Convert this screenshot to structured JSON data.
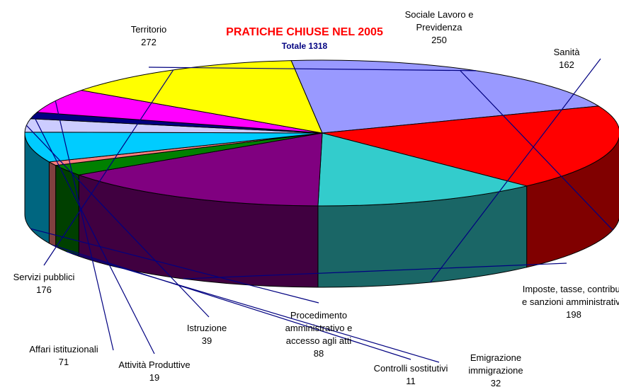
{
  "chart_data": {
    "type": "pie3d",
    "title": "PRATICHE CHIUSE NEL 2005",
    "subtitle": "Totale 1318",
    "categories": [
      "Territorio",
      "Sociale Lavoro e Previdenza",
      "Sanità",
      "Imposte, tasse, contributi e sanzioni amministrative",
      "Emigrazione immigrazione",
      "Controlli sostitutivi",
      "Procedimento amministrativo e accesso agli atti",
      "Istruzione",
      "Attività Produttive",
      "Affari istituzionali",
      "Servizi pubblici"
    ],
    "values": [
      272,
      250,
      162,
      198,
      32,
      11,
      88,
      39,
      19,
      71,
      176
    ],
    "colors": [
      "#9999ff",
      "#ff0000",
      "#33cccc",
      "#800080",
      "#008000",
      "#ff8080",
      "#00ccff",
      "#ccccff",
      "#000080",
      "#ff00ff",
      "#ffff00"
    ]
  }
}
